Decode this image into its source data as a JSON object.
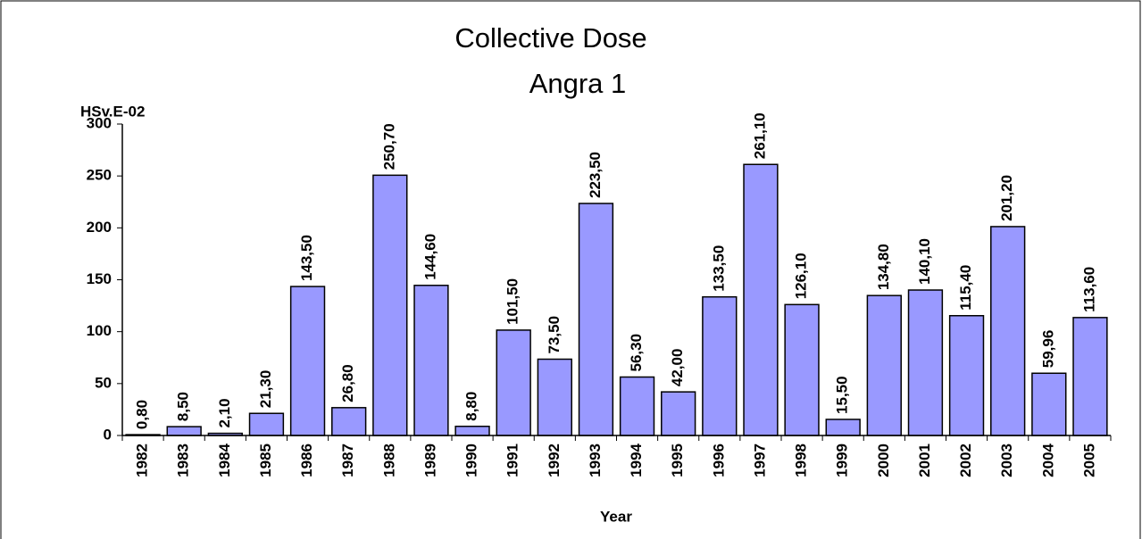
{
  "chart_data": {
    "type": "bar",
    "title": "Collective Dose",
    "subtitle": "Angra 1",
    "y_label": "HSv.E-02",
    "x_label": "Year",
    "categories": [
      "1982",
      "1983",
      "1984",
      "1985",
      "1986",
      "1987",
      "1988",
      "1989",
      "1990",
      "1991",
      "1992",
      "1993",
      "1994",
      "1995",
      "1996",
      "1997",
      "1998",
      "1999",
      "2000",
      "2001",
      "2002",
      "2003",
      "2004",
      "2005"
    ],
    "values": [
      0.8,
      8.5,
      2.1,
      21.3,
      143.5,
      26.8,
      250.7,
      144.6,
      8.8,
      101.5,
      73.5,
      223.5,
      56.3,
      42.0,
      133.5,
      261.1,
      126.1,
      15.5,
      134.8,
      140.1,
      115.4,
      201.2,
      59.96,
      113.6
    ],
    "value_labels": [
      "0,80",
      "8,50",
      "2,10",
      "21,30",
      "143,50",
      "26,80",
      "250,70",
      "144,60",
      "8,80",
      "101,50",
      "73,50",
      "223,50",
      "56,30",
      "42,00",
      "133,50",
      "261,10",
      "126,10",
      "15,50",
      "134,80",
      "140,10",
      "115,40",
      "201,20",
      "59,96",
      "113,60"
    ],
    "color": "#9999ff",
    "ylim": [
      0,
      300
    ],
    "yticks": [
      0,
      50,
      100,
      150,
      200,
      250,
      300
    ]
  }
}
